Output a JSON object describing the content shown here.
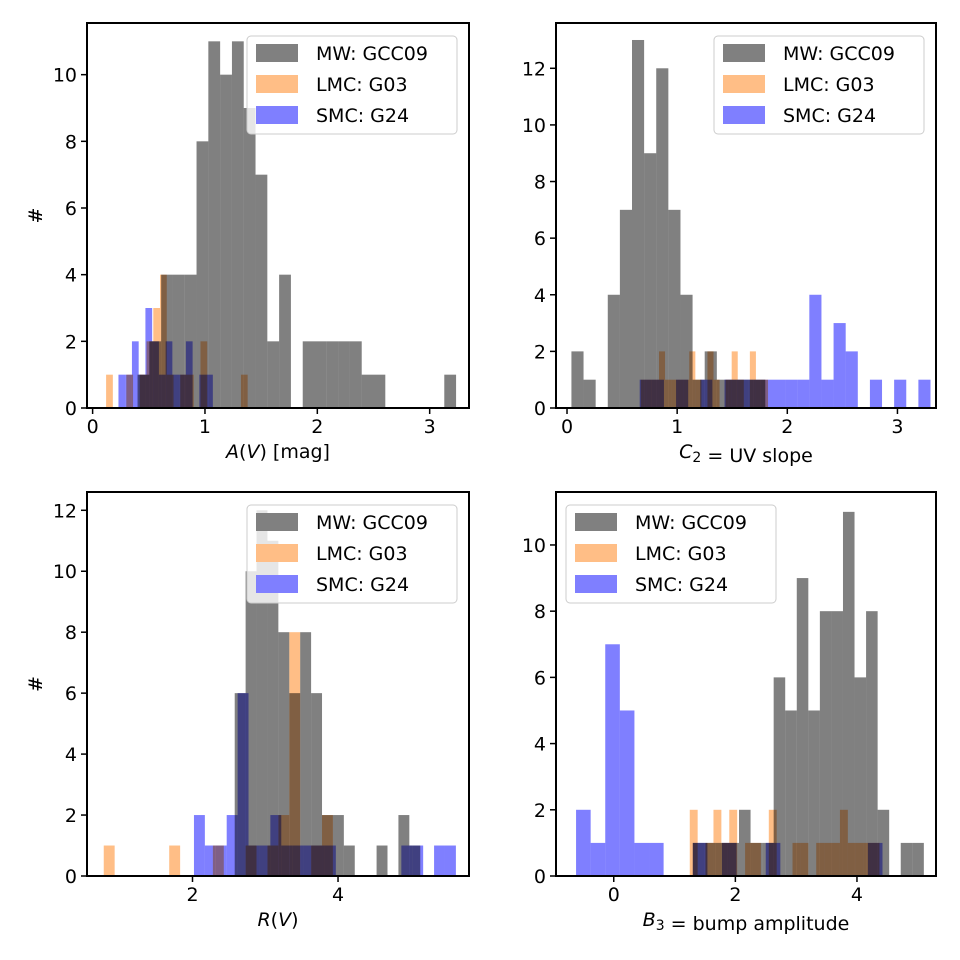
{
  "colors": {
    "mw": "#808080",
    "lmc": "#ffbe86",
    "smc": "#7f7fff",
    "lmc_over_mw": "#c07f43",
    "smc_over_mw": "#5d5dab",
    "smc_over_lmc": "#5a3ad4"
  },
  "chart_data": [
    {
      "type": "histogram",
      "xlabel": "A(V) [mag]",
      "xlabel_parts": [
        {
          "t": "A",
          "style": "italic"
        },
        {
          "t": "(",
          "style": "normal"
        },
        {
          "t": "V",
          "style": "italic"
        },
        {
          "t": ") [mag]",
          "style": "normal"
        }
      ],
      "ylabel": "#",
      "xlim": [
        -0.05,
        3.35
      ],
      "ylim": [
        0,
        11.55
      ],
      "xticks": [
        0,
        1,
        2,
        3
      ],
      "yticks": [
        0,
        2,
        4,
        6,
        8,
        10
      ],
      "legend": {
        "position": "top-right",
        "entries": [
          "MW: GCC09",
          "LMC: G03",
          "SMC: G24"
        ]
      },
      "series": [
        {
          "name": "MW: GCC09",
          "color_key": "mw",
          "edges": [
            0.4,
            0.505,
            0.61,
            0.715,
            0.82,
            0.925,
            1.03,
            1.135,
            1.24,
            1.345,
            1.45,
            1.555,
            1.66,
            1.765,
            1.87,
            1.975,
            2.08,
            2.185,
            2.29,
            2.395,
            2.5,
            2.605,
            2.71,
            2.815,
            2.92,
            3.025,
            3.13,
            3.235
          ],
          "counts": [
            1,
            2,
            4,
            4,
            4,
            8,
            11,
            10,
            11,
            9,
            7,
            2,
            4,
            0,
            2,
            2,
            2,
            2,
            2,
            1,
            1,
            0,
            0,
            0,
            0,
            0,
            1
          ]
        },
        {
          "name": "LMC: G03",
          "color_key": "lmc",
          "edges": [
            0.12,
            0.18,
            0.24,
            0.3,
            0.36,
            0.42,
            0.48,
            0.54,
            0.6,
            0.66,
            0.72,
            0.78,
            0.84,
            0.9,
            0.96,
            1.02,
            1.08,
            1.14,
            1.2,
            1.26,
            1.32,
            1.38
          ],
          "counts": [
            1,
            0,
            0,
            1,
            0,
            1,
            2,
            3,
            4,
            1,
            0,
            1,
            1,
            0,
            2,
            0,
            0,
            0,
            0,
            0,
            1
          ]
        },
        {
          "name": "SMC: G24",
          "color_key": "smc",
          "edges": [
            0.23,
            0.29,
            0.35,
            0.41,
            0.47,
            0.53,
            0.59,
            0.65,
            0.71,
            0.77,
            0.83,
            0.89,
            0.95,
            1.01,
            1.07
          ],
          "counts": [
            1,
            1,
            2,
            1,
            3,
            2,
            1,
            2,
            1,
            1,
            2,
            0,
            1,
            1
          ]
        }
      ]
    },
    {
      "type": "histogram",
      "xlabel": "C2 = UV slope",
      "xlabel_parts": [
        {
          "t": "C",
          "style": "italic"
        },
        {
          "t": "2",
          "style": "sub"
        },
        {
          "t": " = UV slope",
          "style": "normal"
        }
      ],
      "ylabel": "#",
      "xlim": [
        -0.1,
        3.35
      ],
      "ylim": [
        0,
        13.6
      ],
      "xticks": [
        0,
        1,
        2,
        3
      ],
      "yticks": [
        0,
        2,
        4,
        6,
        8,
        10,
        12
      ],
      "legend": {
        "position": "top-right",
        "entries": [
          "MW: GCC09",
          "LMC: G03",
          "SMC: G24"
        ]
      },
      "series": [
        {
          "name": "MW: GCC09",
          "color_key": "mw",
          "edges": [
            0.04,
            0.15,
            0.26,
            0.37,
            0.48,
            0.59,
            0.7,
            0.81,
            0.92,
            1.03,
            1.14,
            1.25,
            1.36,
            1.47,
            1.58,
            1.69,
            1.8
          ],
          "counts": [
            2,
            1,
            0,
            4,
            7,
            13,
            9,
            12,
            7,
            4,
            1,
            2,
            1,
            1,
            1,
            1
          ]
        },
        {
          "name": "LMC: G03",
          "color_key": "lmc",
          "edges": [
            0.67,
            0.725,
            0.78,
            0.835,
            0.89,
            0.945,
            1.0,
            1.055,
            1.11,
            1.165,
            1.22,
            1.275,
            1.33,
            1.385,
            1.44,
            1.495,
            1.55,
            1.605,
            1.66,
            1.715,
            1.77,
            1.825
          ],
          "counts": [
            1,
            1,
            1,
            2,
            1,
            1,
            1,
            1,
            2,
            1,
            0,
            2,
            1,
            0,
            1,
            2,
            1,
            0,
            2,
            1,
            1
          ]
        },
        {
          "name": "SMC: G24",
          "color_key": "smc",
          "edges": [
            0.66,
            0.77,
            0.88,
            0.99,
            1.1,
            1.21,
            1.32,
            1.43,
            1.54,
            1.65,
            1.76,
            1.87,
            1.98,
            2.09,
            2.2,
            2.31,
            2.42,
            2.53,
            2.64,
            2.75,
            2.86,
            2.97,
            3.08,
            3.19,
            3.3
          ],
          "counts": [
            1,
            1,
            0,
            1,
            0,
            1,
            0,
            1,
            1,
            1,
            1,
            1,
            1,
            1,
            4,
            1,
            3,
            2,
            0,
            1,
            0,
            1,
            0,
            1
          ]
        }
      ]
    },
    {
      "type": "histogram",
      "xlabel": "R(V)",
      "xlabel_parts": [
        {
          "t": "R",
          "style": "italic"
        },
        {
          "t": "(",
          "style": "normal"
        },
        {
          "t": "V",
          "style": "italic"
        },
        {
          "t": ")",
          "style": "normal"
        }
      ],
      "ylabel": "#",
      "xlim": [
        0.55,
        5.8
      ],
      "ylim": [
        0,
        12.6
      ],
      "xticks": [
        2,
        4
      ],
      "yticks": [
        0,
        2,
        4,
        6,
        8,
        10,
        12
      ],
      "legend": {
        "position": "top-right",
        "entries": [
          "MW: GCC09",
          "LMC: G03",
          "SMC: G24"
        ]
      },
      "series": [
        {
          "name": "MW: GCC09",
          "color_key": "mw",
          "edges": [
            2.58,
            2.73,
            2.88,
            3.03,
            3.18,
            3.33,
            3.48,
            3.63,
            3.78,
            3.93,
            4.08,
            4.23,
            4.38,
            4.53,
            4.68,
            4.83,
            4.98,
            5.13
          ],
          "counts": [
            6,
            10,
            12,
            11,
            8,
            6,
            8,
            6,
            2,
            2,
            1,
            0,
            0,
            1,
            0,
            2,
            1
          ]
        },
        {
          "name": "LMC: G03",
          "color_key": "lmc",
          "edges": [
            0.78,
            0.93,
            1.08,
            1.23,
            1.38,
            1.53,
            1.68,
            1.83,
            1.98,
            2.13,
            2.28,
            2.43,
            2.58,
            2.73,
            2.88,
            3.03,
            3.18,
            3.33,
            3.48,
            3.63,
            3.78,
            3.93
          ],
          "counts": [
            1,
            0,
            0,
            0,
            0,
            0,
            1,
            0,
            0,
            0,
            1,
            0,
            0,
            1,
            0,
            1,
            2,
            8,
            0,
            1,
            2
          ]
        },
        {
          "name": "SMC: G24",
          "color_key": "smc",
          "edges": [
            2.02,
            2.17,
            2.32,
            2.47,
            2.62,
            2.77,
            2.92,
            3.07,
            3.22,
            3.37,
            3.52,
            3.67,
            3.82,
            3.97,
            4.12,
            4.27,
            4.42,
            4.57,
            4.72,
            4.87,
            5.02,
            5.17,
            5.32,
            5.47,
            5.62
          ],
          "counts": [
            2,
            1,
            1,
            2,
            6,
            1,
            1,
            2,
            1,
            1,
            1,
            1,
            1,
            0,
            0,
            0,
            0,
            0,
            0,
            1,
            1,
            0,
            1,
            1
          ]
        }
      ]
    },
    {
      "type": "histogram",
      "xlabel": "B3 = bump amplitude",
      "xlabel_parts": [
        {
          "t": "B",
          "style": "italic"
        },
        {
          "t": "3",
          "style": "sub"
        },
        {
          "t": " = bump amplitude",
          "style": "normal"
        }
      ],
      "ylabel": "#",
      "xlim": [
        -0.95,
        5.3
      ],
      "ylim": [
        0,
        11.6
      ],
      "xticks": [
        0,
        2,
        4
      ],
      "yticks": [
        0,
        2,
        4,
        6,
        8,
        10
      ],
      "legend": {
        "position": "top-left",
        "entries": [
          "MW: GCC09",
          "LMC: G03",
          "SMC: G24"
        ]
      },
      "series": [
        {
          "name": "MW: GCC09",
          "color_key": "mw",
          "edges": [
            1.3,
            1.49,
            1.68,
            1.87,
            2.06,
            2.25,
            2.44,
            2.63,
            2.82,
            3.01,
            3.2,
            3.39,
            3.58,
            3.77,
            3.96,
            4.15,
            4.34,
            4.53,
            4.72,
            4.91,
            5.1
          ],
          "counts": [
            1,
            1,
            1,
            1,
            2,
            1,
            1,
            6,
            5,
            9,
            5,
            8,
            8,
            11,
            6,
            8,
            2,
            0,
            1,
            1
          ]
        },
        {
          "name": "LMC: G03",
          "color_key": "lmc",
          "edges": [
            1.25,
            1.38,
            1.51,
            1.64,
            1.77,
            1.9,
            2.03,
            2.16,
            2.29,
            2.42,
            2.55,
            2.68,
            2.81,
            2.94,
            3.07,
            3.2,
            3.33,
            3.46,
            3.59,
            3.72,
            3.85,
            3.98,
            4.11,
            4.24,
            4.37
          ],
          "counts": [
            2,
            0,
            1,
            2,
            1,
            2,
            0,
            1,
            1,
            0,
            2,
            0,
            0,
            1,
            1,
            0,
            1,
            1,
            1,
            2,
            1,
            1,
            1,
            1
          ]
        },
        {
          "name": "SMC: G24",
          "color_key": "smc",
          "edges": [
            -0.62,
            -0.38,
            -0.14,
            0.1,
            0.34,
            0.58,
            0.82,
            1.06,
            1.3,
            1.54,
            1.78,
            2.02,
            2.26,
            2.5,
            2.74,
            2.98,
            3.22,
            3.46,
            3.7,
            3.94,
            4.18,
            4.42
          ],
          "counts": [
            2,
            1,
            7,
            5,
            1,
            1,
            0,
            0,
            1,
            0,
            1,
            0,
            0,
            1,
            0,
            0,
            0,
            0,
            0,
            0,
            1
          ]
        }
      ]
    }
  ]
}
